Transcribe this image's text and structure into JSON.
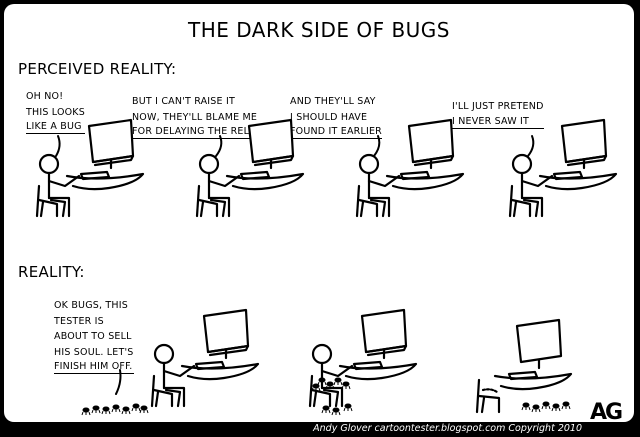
{
  "title": "THE DARK SIDE OF BUGS",
  "sections": {
    "perceived": "PERCEIVED REALITY:",
    "reality": "REALITY:"
  },
  "bubbles": {
    "p1": [
      "OH NO!",
      "THIS LOOKS",
      "LIKE A BUG"
    ],
    "p2": [
      "BUT I CAN'T RAISE IT",
      "NOW, THEY'LL BLAME ME",
      "FOR DELAYING THE RELEASE"
    ],
    "p3": [
      "AND THEY'LL SAY",
      "I SHOULD HAVE",
      "FOUND IT EARLIER"
    ],
    "p4": [
      "I'LL JUST PRETEND",
      "I NEVER SAW IT"
    ],
    "r1": [
      "OK BUGS, THIS",
      "TESTER IS",
      "ABOUT TO SELL",
      "HIS SOUL. LET'S",
      "FINISH HIM OFF."
    ]
  },
  "signature": "AG",
  "footer": "Andy Glover cartoontester.blogspot.com Copyright 2010"
}
